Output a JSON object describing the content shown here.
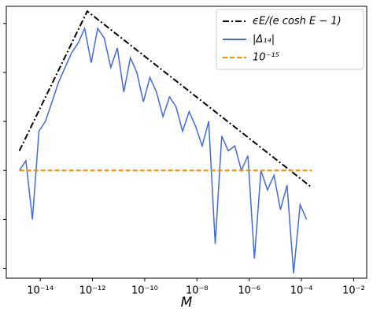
{
  "chart_data": {
    "type": "line",
    "x_label": "M",
    "log_x": true,
    "log_y": true,
    "legend": "upper right",
    "xlim": [
      5.01e-16,
      0.0316
    ],
    "ylim": [
      6.31e-18,
      2.24e-12
    ],
    "xticks": [
      {
        "value": 1e-14,
        "label": "10⁻¹⁴"
      },
      {
        "value": 1e-12,
        "label": "10⁻¹²"
      },
      {
        "value": 1e-10,
        "label": "10⁻¹⁰"
      },
      {
        "value": 1e-08,
        "label": "10⁻⁸"
      },
      {
        "value": 1e-06,
        "label": "10⁻⁶"
      },
      {
        "value": 0.0001,
        "label": "10⁻⁴"
      },
      {
        "value": 0.01,
        "label": "10⁻²"
      }
    ],
    "yticks": [
      1e-17,
      1e-16,
      1e-15,
      1e-14,
      1e-13,
      1e-12
    ],
    "series": [
      {
        "name": "ϵE/(e cosh E − 1)",
        "color": "#000000",
        "style": "dashdot",
        "x": [
          1.58e-15,
          6.31e-13,
          0.000251
        ],
        "values": [
          2.51e-15,
          1.78e-12,
          4.47e-16
        ]
      },
      {
        "name": "|Δ₁₄|",
        "color": "#4169e1",
        "style": "solid",
        "x": [
          1.58e-15,
          2.82e-15,
          5.01e-15,
          8.91e-15,
          1.58e-14,
          2.82e-14,
          5.01e-14,
          8.91e-14,
          1.58e-13,
          2.82e-13,
          5.01e-13,
          8.91e-13,
          1.58e-12,
          2.82e-12,
          5.01e-12,
          8.91e-12,
          1.58e-11,
          2.82e-11,
          5.01e-11,
          8.91e-11,
          1.58e-10,
          2.82e-10,
          5.01e-10,
          8.91e-10,
          1.58e-09,
          2.82e-09,
          5.01e-09,
          8.91e-09,
          1.58e-08,
          2.82e-08,
          5.01e-08,
          8.91e-08,
          1.58e-07,
          2.82e-07,
          5.01e-07,
          8.91e-07,
          1.58e-06,
          2.82e-06,
          5.01e-06,
          8.91e-06,
          1.58e-05,
          2.82e-05,
          5.01e-05,
          8.91e-05,
          0.000158
        ],
        "values": [
          1e-15,
          1.58e-15,
          1e-16,
          6.31e-15,
          1e-14,
          2.51e-14,
          6.31e-14,
          1.26e-13,
          2.51e-13,
          3.98e-13,
          7.94e-13,
          1.58e-13,
          7.94e-13,
          5.01e-13,
          1.26e-13,
          3.16e-13,
          3.98e-14,
          2e-13,
          1e-13,
          2.51e-14,
          7.94e-14,
          3.98e-14,
          1.26e-14,
          3.16e-14,
          2e-14,
          6.31e-15,
          1.58e-14,
          7.94e-15,
          3.16e-15,
          1e-14,
          3.16e-17,
          5.01e-15,
          2.51e-15,
          3.16e-15,
          1e-15,
          2e-15,
          1.58e-17,
          1e-15,
          3.98e-16,
          7.94e-16,
          1.58e-16,
          5.01e-16,
          7.94e-18,
          2e-16,
          1e-16
        ]
      },
      {
        "name": "10⁻¹⁵",
        "color": "#ff8c00",
        "style": "dashed",
        "x": [
          1.58e-15,
          0.000251
        ],
        "values": [
          1e-15,
          1e-15
        ]
      }
    ]
  }
}
